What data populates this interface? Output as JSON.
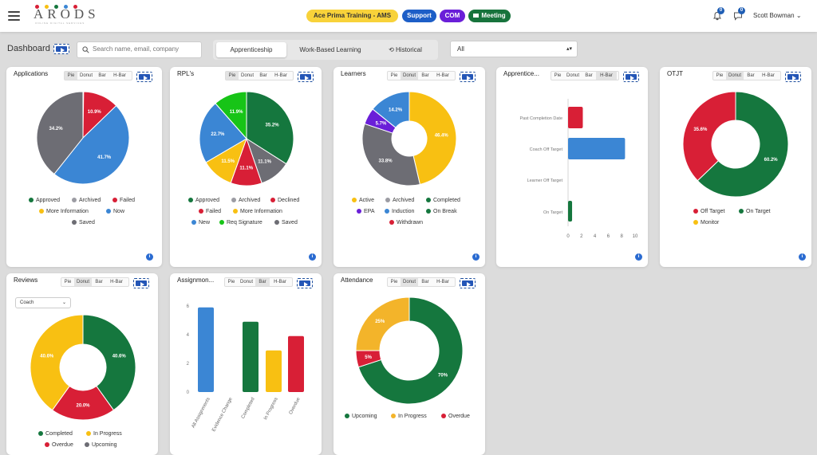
{
  "header": {
    "logo": "ARODS",
    "logo_tagline": "ONLINE DIGITAL SERVICES",
    "training": "Ace Prima Training - AMS",
    "support": "Support",
    "com": "COM",
    "meeting": "Meeting",
    "notif_count": "0",
    "msg_count": "0",
    "user": "Scott Bowman"
  },
  "icons": {
    "menu": "hamburger-icon",
    "bell": "bell-icon",
    "chat": "chat-icon",
    "search": "search-icon",
    "play": "play-icon",
    "info": "info-icon",
    "meeting": "video-icon",
    "historical": "history-icon"
  },
  "dashboard": {
    "title": "Dashboard",
    "search_placeholder": "Search name, email, company",
    "tabs": [
      "Apprenticeship",
      "Work-Based Learning",
      "Historical"
    ],
    "filter": "All"
  },
  "chart_tabs": [
    "Pie",
    "Donut",
    "Bar",
    "H-Bar"
  ],
  "colors": {
    "green": "#15773e",
    "gray": "#6d6d74",
    "red": "#d81f36",
    "yellow": "#f8c012",
    "blue": "#3b86d4",
    "purple": "#6a1fd8",
    "brightgreen": "#17c417",
    "ochre": "#f3b42a"
  },
  "chart_data": [
    {
      "type": "pie",
      "title": "Applications",
      "slices": [
        {
          "label": "Approved",
          "value": 0.2,
          "color": "#15773e"
        },
        {
          "label": "Failed",
          "value": 10.9,
          "color": "#d81f36"
        },
        {
          "label": "Now",
          "value": 41.7,
          "color": "#3b86d4"
        },
        {
          "label": "Archived",
          "value": 34.2,
          "color": "#6d6d74"
        }
      ],
      "slice_labels": [
        "0.2%",
        "10.9%",
        "41.7%",
        "34.2%"
      ],
      "legend": [
        "Approved",
        "Archived",
        "Failed",
        "More Information",
        "Now",
        "Saved"
      ]
    },
    {
      "type": "pie",
      "title": "RPL's",
      "slices": [
        {
          "label": "Approved",
          "value": 35.2,
          "color": "#15773e"
        },
        {
          "label": "Saved",
          "value": 11.1,
          "color": "#6d6d74"
        },
        {
          "label": "Declined",
          "value": 11.1,
          "color": "#d81f36"
        },
        {
          "label": "More Information",
          "value": 11.5,
          "color": "#f8c012"
        },
        {
          "label": "New",
          "value": 22.7,
          "color": "#3b86d4"
        },
        {
          "label": "Req Signature",
          "value": 11.9,
          "color": "#17c417"
        }
      ],
      "slice_labels": [
        "35.2%",
        "11.1%",
        "11.1%",
        "11.5%",
        "22.7%",
        "11.9%"
      ],
      "legend": [
        "Approved",
        "Archived",
        "Declined",
        "Failed",
        "More Information",
        "New",
        "Req Signature",
        "Saved"
      ]
    },
    {
      "type": "donut",
      "title": "Learners",
      "slices": [
        {
          "label": "Active",
          "value": 46.4,
          "color": "#f8c012"
        },
        {
          "label": "Archived",
          "value": 33.8,
          "color": "#6d6d74"
        },
        {
          "label": "EPA",
          "value": 5.7,
          "color": "#6a1fd8"
        },
        {
          "label": "Induction",
          "value": 14.2,
          "color": "#3b86d4"
        }
      ],
      "slice_labels": [
        "46.4%",
        "33.8%",
        "5.7%",
        "14.2%"
      ],
      "legend": [
        "Active",
        "Archived",
        "Completed",
        "EPA",
        "Induction",
        "On Break",
        "Withdrawn"
      ]
    },
    {
      "type": "hbar",
      "title": "Apprentice...",
      "categories": [
        "Past Completion Date",
        "Coach Off Target",
        "Learner Off Target",
        "On Target"
      ],
      "values": [
        2.2,
        8.5,
        0,
        0.6
      ],
      "colors": [
        "#d81f36",
        "#3b86d4",
        "#f8c012",
        "#15773e"
      ],
      "xlim": [
        0,
        10
      ],
      "xticks": [
        "0",
        "2",
        "4",
        "6",
        "8",
        "10"
      ]
    },
    {
      "type": "donut",
      "title": "OTJT",
      "slices": [
        {
          "label": "On Target",
          "value": 60.2,
          "color": "#15773e"
        },
        {
          "label": "Off Target",
          "value": 35.6,
          "color": "#d81f36"
        }
      ],
      "slice_labels": [
        "60.2%",
        "35.6%"
      ],
      "legend": [
        "Off Target",
        "On Target",
        "Monitor"
      ]
    },
    {
      "type": "donut",
      "title": "Reviews",
      "slices": [
        {
          "label": "Completed",
          "value": 40.6,
          "color": "#15773e"
        },
        {
          "label": "Overdue",
          "value": 20.0,
          "color": "#d81f36"
        },
        {
          "label": "In Progress",
          "value": 40.6,
          "color": "#f8c012"
        }
      ],
      "slice_labels": [
        "40.6%",
        "20.0%",
        "40.6%"
      ],
      "legend": [
        "Completed",
        "In Progress",
        "Overdue",
        "Upcoming"
      ],
      "dropdown": "Coach"
    },
    {
      "type": "bar",
      "title": "Assignmon...",
      "categories": [
        "All Assignments",
        "Evidence Change",
        "Completed",
        "In Progress",
        "Overdue"
      ],
      "values": [
        5.9,
        0,
        4.9,
        2.9,
        3.9
      ],
      "colors": [
        "#3b86d4",
        "#3b86d4",
        "#15773e",
        "#f8c012",
        "#d81f36"
      ],
      "ylim": [
        0,
        6
      ],
      "yticks": [
        "0",
        "2",
        "4",
        "6"
      ]
    },
    {
      "type": "donut",
      "title": "Attendance",
      "slices": [
        {
          "label": "Upcoming",
          "value": 70,
          "color": "#15773e"
        },
        {
          "label": "Overdue",
          "value": 5,
          "color": "#d81f36"
        },
        {
          "label": "In Progress",
          "value": 25,
          "color": "#f3b42a"
        }
      ],
      "slice_labels": [
        "70%",
        "5%",
        "25%"
      ],
      "legend": [
        "Upcoming",
        "In Progress",
        "Overdue"
      ]
    }
  ]
}
